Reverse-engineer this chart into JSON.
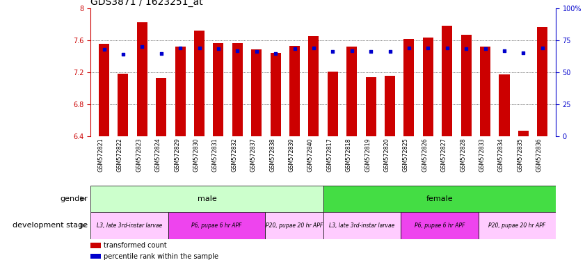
{
  "title": "GDS3871 / 1623251_at",
  "samples": [
    "GSM572821",
    "GSM572822",
    "GSM572823",
    "GSM572824",
    "GSM572829",
    "GSM572830",
    "GSM572831",
    "GSM572832",
    "GSM572837",
    "GSM572838",
    "GSM572839",
    "GSM572840",
    "GSM572817",
    "GSM572818",
    "GSM572819",
    "GSM572820",
    "GSM572825",
    "GSM572826",
    "GSM572827",
    "GSM572828",
    "GSM572833",
    "GSM572834",
    "GSM572835",
    "GSM572836"
  ],
  "bar_values": [
    7.55,
    7.18,
    7.82,
    7.13,
    7.52,
    7.72,
    7.56,
    7.56,
    7.48,
    7.44,
    7.53,
    7.65,
    7.21,
    7.52,
    7.14,
    7.15,
    7.61,
    7.63,
    7.78,
    7.67,
    7.52,
    7.17,
    6.47,
    7.76
  ],
  "percentile_values": [
    7.48,
    7.42,
    7.52,
    7.43,
    7.5,
    7.5,
    7.49,
    7.47,
    7.46,
    7.43,
    7.49,
    7.5,
    7.46,
    7.47,
    7.46,
    7.46,
    7.5,
    7.5,
    7.5,
    7.49,
    7.49,
    7.47,
    7.44,
    7.5
  ],
  "bar_color": "#cc0000",
  "percentile_color": "#0000cc",
  "ylim": [
    6.4,
    8.0
  ],
  "yticks": [
    6.4,
    6.8,
    7.2,
    7.6,
    8.0
  ],
  "ytick_labels": [
    "6.4",
    "6.8",
    "7.2",
    "7.6",
    "8"
  ],
  "right_yticks": [
    0,
    25,
    50,
    75,
    100
  ],
  "right_ytick_labels": [
    "0",
    "25",
    "50",
    "75",
    "100%"
  ],
  "gender_groups": [
    {
      "label": "male",
      "start": 0,
      "end": 12,
      "color": "#ccffcc"
    },
    {
      "label": "female",
      "start": 12,
      "end": 24,
      "color": "#44dd44"
    }
  ],
  "dev_stage_groups": [
    {
      "label": "L3, late 3rd-instar larvae",
      "start": 0,
      "end": 4,
      "color": "#ffccff"
    },
    {
      "label": "P6, pupae 6 hr APF",
      "start": 4,
      "end": 9,
      "color": "#ee44ee"
    },
    {
      "label": "P20, pupae 20 hr APF",
      "start": 9,
      "end": 12,
      "color": "#ffccff"
    },
    {
      "label": "L3, late 3rd-instar larvae",
      "start": 12,
      "end": 16,
      "color": "#ffccff"
    },
    {
      "label": "P6, pupae 6 hr APF",
      "start": 16,
      "end": 20,
      "color": "#ee44ee"
    },
    {
      "label": "P20, pupae 20 hr APF",
      "start": 20,
      "end": 24,
      "color": "#ffccff"
    }
  ],
  "legend_items": [
    {
      "label": "transformed count",
      "color": "#cc0000"
    },
    {
      "label": "percentile rank within the sample",
      "color": "#0000cc"
    }
  ],
  "bar_width": 0.55,
  "background_color": "#ffffff",
  "xticklabel_bg": "#cccccc",
  "title_fontsize": 10,
  "tick_fontsize": 7,
  "label_fontsize": 8,
  "dev_fontsize": 6,
  "gender_fontsize": 8
}
